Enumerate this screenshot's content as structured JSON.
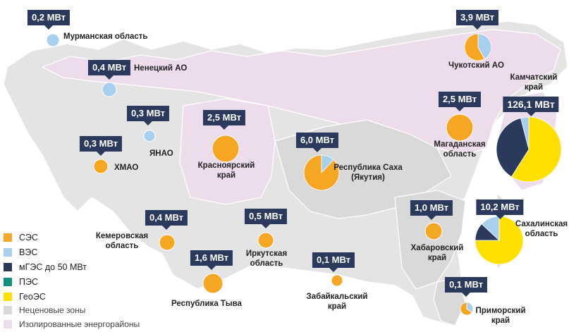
{
  "colors": {
    "ses": "#f5a623",
    "ves": "#a9cfee",
    "mges": "#2b3a5c",
    "pes": "#10907a",
    "geoes": "#ffe000",
    "non_price": "#d9d9d9",
    "isolated": "#ecdcec",
    "base": "#e4e4e4",
    "badge": "#2b3a5c"
  },
  "legend": {
    "items": [
      {
        "key": "ses",
        "label": "СЭС"
      },
      {
        "key": "ves",
        "label": "ВЭС"
      },
      {
        "key": "mges",
        "label": "мГЭС до 50 МВт"
      },
      {
        "key": "pes",
        "label": "ПЭС"
      },
      {
        "key": "geoes",
        "label": "ГеоЭС"
      }
    ],
    "zones": [
      {
        "key": "non_price",
        "label": "Неценовые зоны"
      },
      {
        "key": "isolated",
        "label": "Изолированные энергорайоны"
      }
    ]
  },
  "regions": [
    {
      "id": "murmansk",
      "name": "Мурманская область",
      "value": "0,2 МВт",
      "mix": {
        "ves": 1
      }
    },
    {
      "id": "nenets",
      "name": "Ненецкий АО",
      "value": "0,4 МВт",
      "mix": {
        "ves": 1
      }
    },
    {
      "id": "yanao",
      "name": "ЯНАО",
      "value": "0,3 МВт",
      "mix": {
        "ves": 1
      }
    },
    {
      "id": "hmao",
      "name": "ХМАО",
      "value": "0,3 МВт",
      "mix": {
        "ses": 1
      }
    },
    {
      "id": "krasnoyarsk",
      "name": "Красноярский край",
      "value": "2,5 МВт",
      "mix": {
        "ses": 1
      }
    },
    {
      "id": "yakutia",
      "name": "Республика Саха (Якутия)",
      "value": "6,0 МВт",
      "mix": {
        "ses": 0.88,
        "ves": 0.12
      }
    },
    {
      "id": "chukotka",
      "name": "Чукотский АО",
      "value": "3,9 МВт",
      "mix": {
        "ses": 0.58,
        "ves": 0.42
      }
    },
    {
      "id": "magadan",
      "name": "Магаданская область",
      "value": "2,5 МВт",
      "mix": {
        "ses": 1
      }
    },
    {
      "id": "kamchatka",
      "name": "Камчатский край",
      "value": "126,1 МВт",
      "mix": {
        "geoes": 0.59,
        "mges": 0.37,
        "ves": 0.04
      }
    },
    {
      "id": "kemerovo",
      "name": "Кемеровская область",
      "value": "0,4 МВт",
      "mix": {
        "ses": 1
      }
    },
    {
      "id": "irkutsk",
      "name": "Иркутская область",
      "value": "0,5 МВт",
      "mix": {
        "ses": 1
      }
    },
    {
      "id": "tyva",
      "name": "Республика Тыва",
      "value": "1,6 МВт",
      "mix": {
        "ses": 1
      }
    },
    {
      "id": "zabaikalsky",
      "name": "Забайкальский край",
      "value": "0,1 МВт",
      "mix": {
        "ses": 1
      }
    },
    {
      "id": "khabarovsk",
      "name": "Хабаровский край",
      "value": "1,0 МВт",
      "mix": {
        "ses": 1
      }
    },
    {
      "id": "sakhalin",
      "name": "Сахалинская область",
      "value": "10,2 МВт",
      "mix": {
        "geoes": 0.75,
        "mges": 0.12,
        "ves": 0.13
      }
    },
    {
      "id": "primorsky",
      "name": "Приморский край",
      "value": "0,1 МВт",
      "mix": {
        "ses": 0.65,
        "ves": 0.35
      }
    }
  ]
}
